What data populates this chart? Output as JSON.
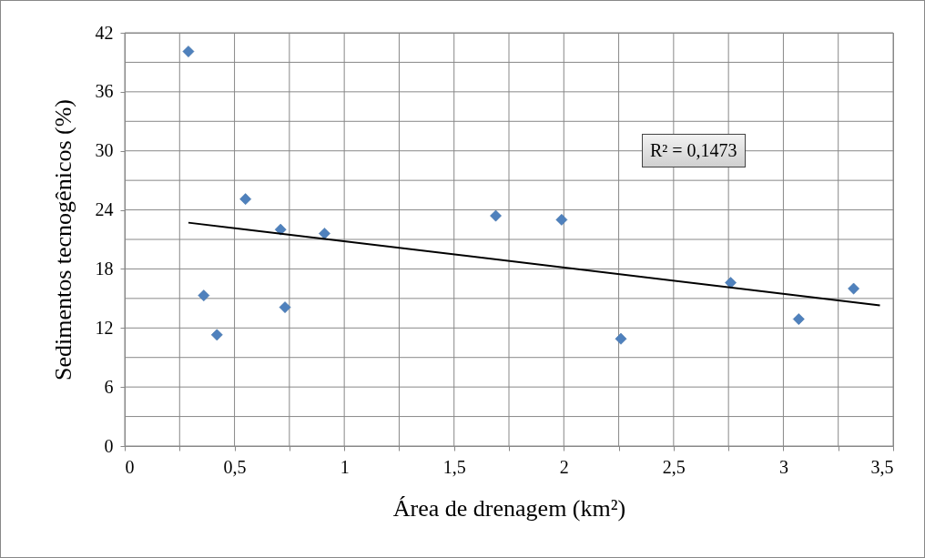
{
  "chart_data": {
    "type": "scatter",
    "xlabel": "Área de drenagem (km²)",
    "ylabel": "Sedimentos tecnogênicos (%)",
    "series": [
      {
        "marker": "diamond",
        "color": "#4f81bd",
        "x": [
          0.29,
          0.36,
          0.42,
          0.55,
          0.71,
          0.73,
          0.91,
          1.69,
          1.99,
          2.26,
          2.76,
          3.07,
          3.32
        ],
        "values": [
          40.1,
          15.3,
          11.3,
          25.1,
          22.0,
          14.1,
          21.6,
          23.4,
          23.0,
          10.9,
          16.6,
          12.9,
          16.0
        ]
      },
      {
        "type": "line",
        "color": "#000000",
        "x": [
          0.29,
          3.44
        ],
        "values": [
          22.7,
          14.3
        ]
      }
    ],
    "xlim": [
      0,
      3.5
    ],
    "xticks": [
      0,
      {
        "value": 0.25,
        "label": null
      },
      {
        "value": 0.5,
        "label": "0,5"
      },
      {
        "value": 0.75,
        "label": null
      },
      1,
      {
        "value": 1.25,
        "label": null
      },
      {
        "value": 1.5,
        "label": "1,5"
      },
      {
        "value": 1.75,
        "label": null
      },
      2,
      {
        "value": 2.25,
        "label": null
      },
      {
        "value": 2.5,
        "label": "2,5"
      },
      {
        "value": 2.75,
        "label": null
      },
      3,
      {
        "value": 3.25,
        "label": null
      },
      {
        "value": 3.5,
        "label": "3,5"
      }
    ],
    "ylim": [
      0,
      42
    ],
    "yticks": [
      0,
      {
        "value": 3,
        "label": null
      },
      6,
      {
        "value": 9,
        "label": null
      },
      12,
      {
        "value": 15,
        "label": null
      },
      18,
      {
        "value": 21,
        "label": null
      },
      24,
      {
        "value": 27,
        "label": null
      },
      30,
      {
        "value": 33,
        "label": null
      },
      36,
      {
        "value": 39,
        "label": null
      },
      42
    ],
    "grid": true,
    "annotations": [
      "R² = 0,1473"
    ]
  }
}
